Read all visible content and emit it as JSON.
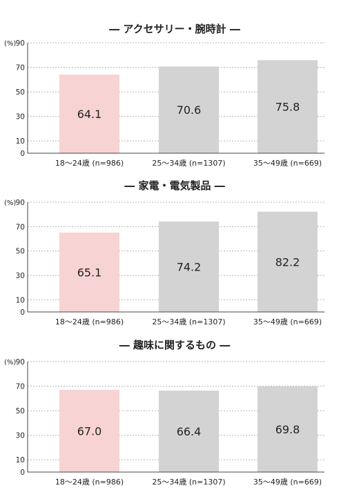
{
  "unit_label": "(%)",
  "chart_data": [
    {
      "type": "bar",
      "title": "― アクセサリー・腕時計 ―",
      "categories": [
        "18〜24歳 (n=986)",
        "25〜34歳 (n=1307)",
        "35〜49歳 (n=669)"
      ],
      "values": [
        64.1,
        70.6,
        75.8
      ],
      "value_labels": [
        "64.1",
        "70.6",
        "75.8"
      ],
      "yticks": [
        0,
        10,
        30,
        50,
        70,
        90
      ],
      "ylim": [
        0,
        90
      ],
      "grid": true,
      "colors": [
        "#f8d3d3",
        "#d3d3d3",
        "#d3d3d3"
      ]
    },
    {
      "type": "bar",
      "title": "― 家電・電気製品 ―",
      "categories": [
        "18〜24歳 (n=986)",
        "25〜34歳 (n=1307)",
        "35〜49歳 (n=669)"
      ],
      "values": [
        65.1,
        74.2,
        82.2
      ],
      "value_labels": [
        "65.1",
        "74.2",
        "82.2"
      ],
      "yticks": [
        0,
        10,
        30,
        50,
        70,
        90
      ],
      "ylim": [
        0,
        90
      ],
      "grid": true,
      "colors": [
        "#f8d3d3",
        "#d3d3d3",
        "#d3d3d3"
      ]
    },
    {
      "type": "bar",
      "title": "― 趣味に関するもの ―",
      "categories": [
        "18〜24歳 (n=986)",
        "25〜34歳 (n=1307)",
        "35〜49歳 (n=669)"
      ],
      "values": [
        67.0,
        66.4,
        69.8
      ],
      "value_labels": [
        "67.0",
        "66.4",
        "69.8"
      ],
      "yticks": [
        0,
        10,
        30,
        50,
        70,
        90
      ],
      "ylim": [
        0,
        90
      ],
      "grid": true,
      "colors": [
        "#f8d3d3",
        "#d3d3d3",
        "#d3d3d3"
      ]
    }
  ]
}
